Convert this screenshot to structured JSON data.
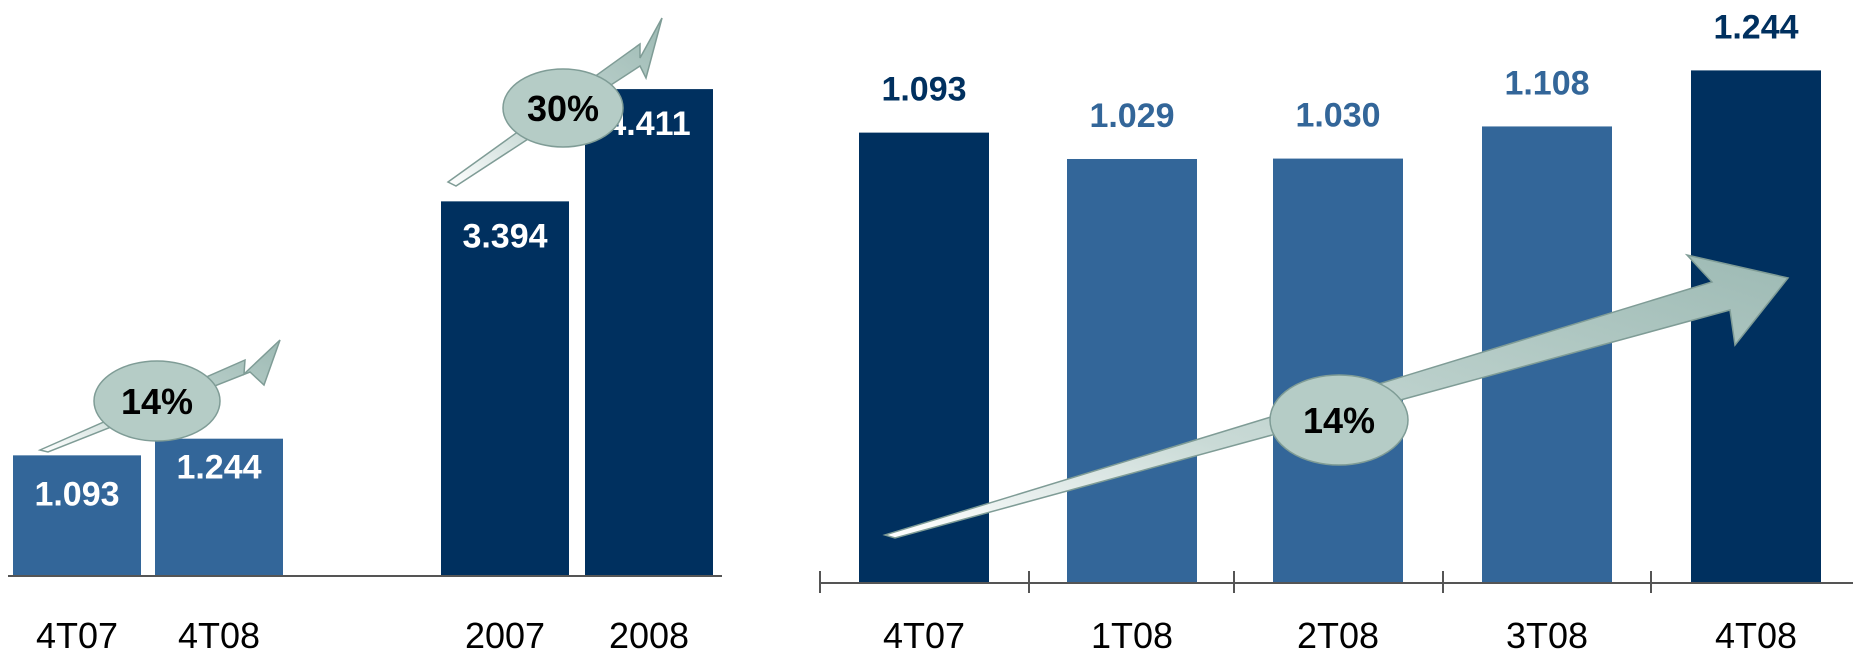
{
  "chart_data": [
    {
      "type": "bar",
      "categories": [
        "4T07",
        "4T08"
      ],
      "values": [
        1.093,
        1.244
      ],
      "value_labels": [
        "1.093",
        "1.244"
      ],
      "growth_label": "14%",
      "ylim": [
        0,
        5.2
      ]
    },
    {
      "type": "bar",
      "categories": [
        "2007",
        "2008"
      ],
      "values": [
        3.394,
        4.411
      ],
      "value_labels": [
        "3.394",
        "4.411"
      ],
      "growth_label": "30%",
      "ylim": [
        0,
        5.2
      ]
    },
    {
      "type": "bar",
      "categories": [
        "4T07",
        "1T08",
        "2T08",
        "3T08",
        "4T08"
      ],
      "values": [
        1.093,
        1.029,
        1.03,
        1.108,
        1.244
      ],
      "value_labels": [
        "1.093",
        "1.029",
        "1.030",
        "1.108",
        "1.244"
      ],
      "growth_label": "14%",
      "ylim": [
        0,
        1.41
      ]
    }
  ],
  "colors": {
    "dark_bar": "#00305f",
    "light_bar": "#336699",
    "dark_label": "#00305f",
    "light_label": "#336699",
    "inside_label": "#ffffff",
    "arrow": "#a9c4be",
    "badge": "#b5ccc6",
    "axis": "#555555"
  }
}
